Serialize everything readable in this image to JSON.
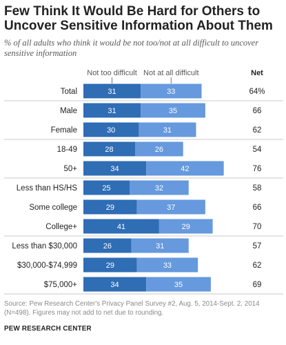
{
  "chart_data": {
    "type": "bar",
    "stacked": true,
    "orientation": "horizontal",
    "title": "Few Think It Would Be Hard for Others to Uncover Sensitive Information About Them",
    "subtitle": "% of all adults who think it would be not too/not at all difficult to uncover sensitive information",
    "net_header": "Net",
    "categories": [
      "Total",
      "Male",
      "Female",
      "18-49",
      "50+",
      "Less than HS/HS",
      "Some college",
      "College+",
      "Less than $30,000",
      "$30,000-$74,999",
      "$75,000+"
    ],
    "groups": [
      [
        0
      ],
      [
        1,
        2
      ],
      [
        3,
        4
      ],
      [
        5,
        6,
        7
      ],
      [
        8,
        9,
        10
      ]
    ],
    "series": [
      {
        "name": "Not too difficult",
        "color": "#2f6db5",
        "values": [
          31,
          31,
          30,
          28,
          34,
          25,
          29,
          41,
          26,
          29,
          34
        ]
      },
      {
        "name": "Not at all difficult",
        "color": "#6699dd",
        "values": [
          33,
          35,
          31,
          26,
          42,
          32,
          37,
          29,
          31,
          33,
          35
        ]
      }
    ],
    "net": [
      "64%",
      "66",
      "62",
      "54",
      "76",
      "58",
      "66",
      "70",
      "57",
      "62",
      "69"
    ],
    "xlim": [
      0,
      80
    ],
    "legend": "top, labels above first bar"
  },
  "footer": {
    "source": "Source: Pew Research Center's Privacy Panel Survey #2, Aug. 5, 2014-Sept. 2, 2014 (N=498). Figures may not add to net due to rounding.",
    "org": "PEW RESEARCH CENTER"
  },
  "colors": {
    "divider": "#c8c8c8",
    "value_text": "#ffffff",
    "muted_text": "#8a8a8a"
  }
}
